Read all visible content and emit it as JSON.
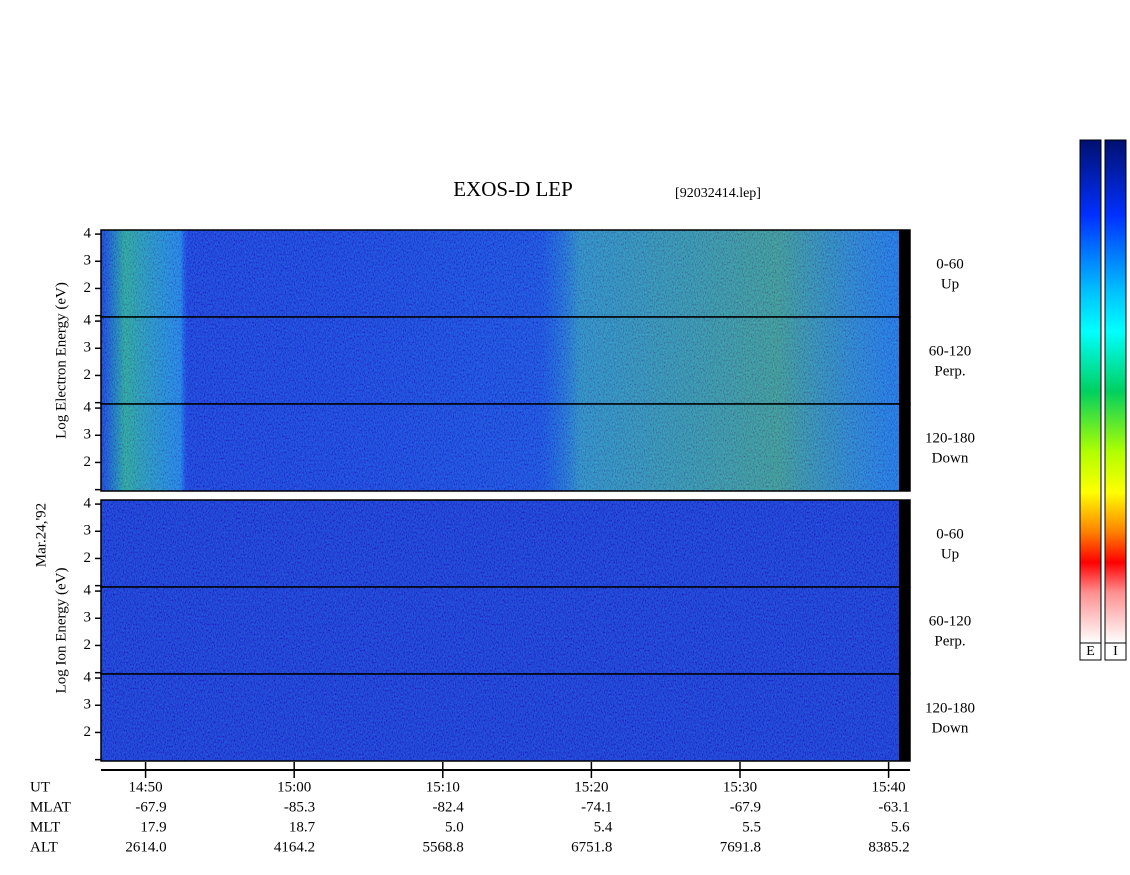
{
  "title": "EXOS-D LEP",
  "file": "[92032414.lep]",
  "date": "Mar.24,'92",
  "xaxis": {
    "xlim": [
      47,
      100.7
    ],
    "xticks": [
      {
        "value": 50,
        "label": "14:50"
      },
      {
        "value": 60,
        "label": "15:00"
      },
      {
        "value": 70,
        "label": "15:10"
      },
      {
        "value": 80,
        "label": "15:20"
      },
      {
        "value": 90,
        "label": "15:30"
      },
      {
        "value": 100,
        "label": "15:40"
      }
    ]
  },
  "groups": [
    {
      "ylabel": "Log Electron Energy (eV)",
      "panels": [
        {
          "angle": "0-60",
          "direction": "Up"
        },
        {
          "angle": "60-120",
          "direction": "Perp."
        },
        {
          "angle": "120-180",
          "direction": "Down"
        }
      ]
    },
    {
      "ylabel": "Log Ion Energy (eV)",
      "panels": [
        {
          "angle": "0-60",
          "direction": "Up"
        },
        {
          "angle": "60-120",
          "direction": "Perp."
        },
        {
          "angle": "120-180",
          "direction": "Down"
        }
      ]
    }
  ],
  "ylim": [
    0.95,
    4.15
  ],
  "yticks": [
    1,
    2,
    3,
    4
  ],
  "ytick_labels": [
    null,
    "2",
    "3",
    "4"
  ],
  "orbit_table": {
    "row_labels": [
      "MLAT",
      "MLT",
      "ALT"
    ],
    "ut_label": "UT",
    "rows": [
      [
        "-67.9",
        "-85.3",
        "-82.4",
        "-74.1",
        "-67.9",
        "-63.1"
      ],
      [
        "17.9",
        "18.7",
        "5.0",
        "5.4",
        "5.5",
        "5.6"
      ],
      [
        "2614.0",
        "4164.2",
        "5568.8",
        "6751.8",
        "7691.8",
        "8385.2"
      ]
    ]
  },
  "colorbars": [
    "E",
    "I"
  ]
}
